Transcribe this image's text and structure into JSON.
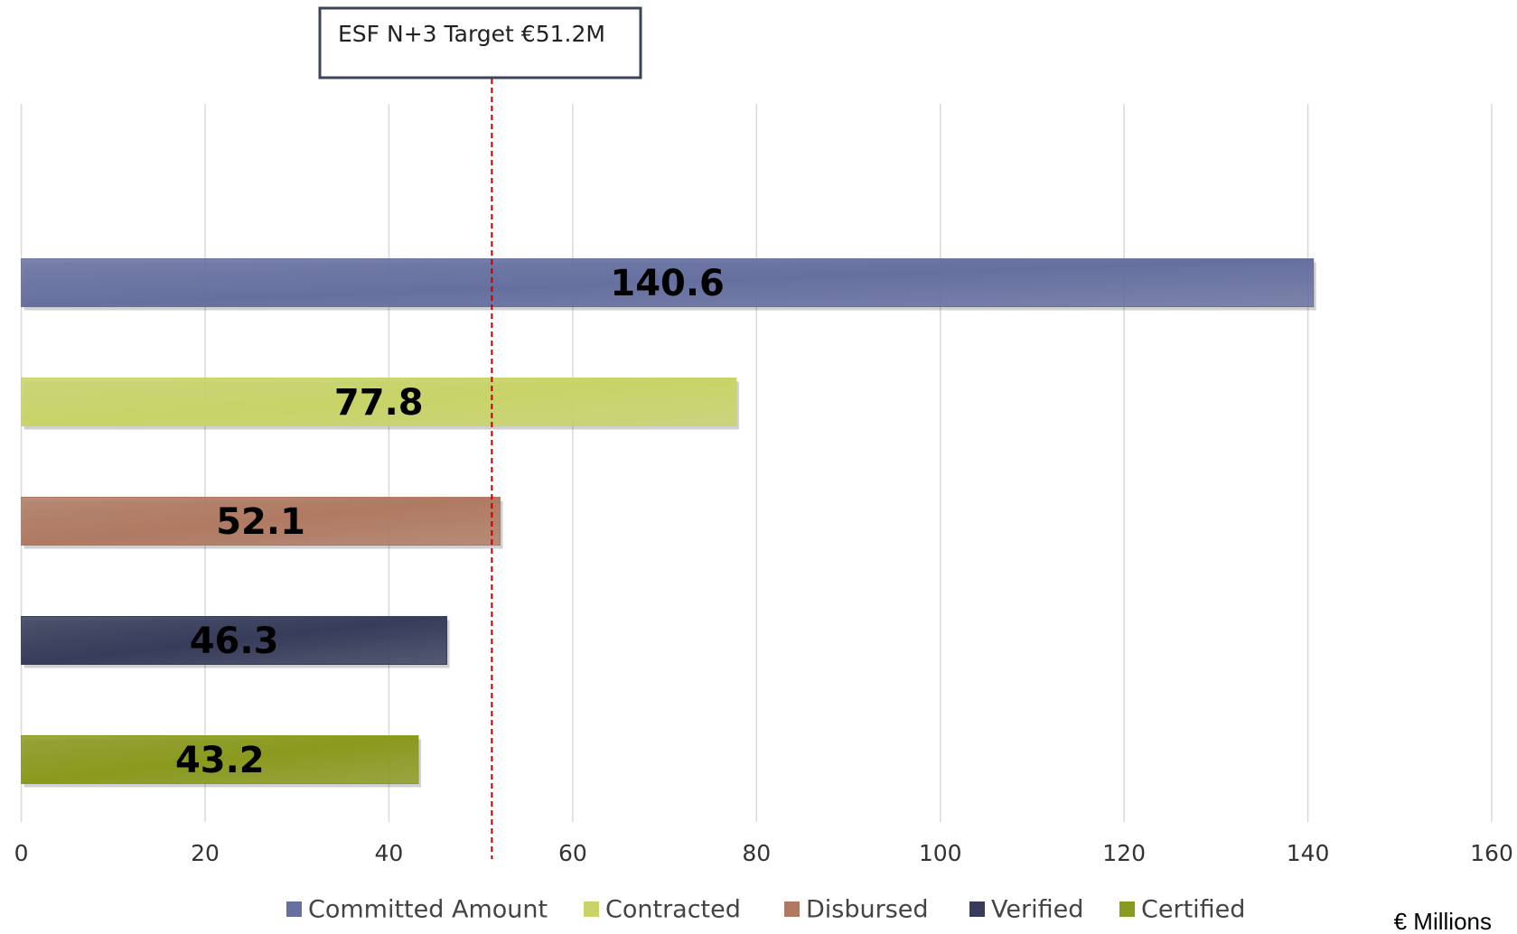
{
  "chart_data": {
    "type": "bar",
    "orientation": "horizontal",
    "series": [
      {
        "name": "Committed Amount",
        "color": "#6670a0",
        "values": [
          140.6
        ]
      },
      {
        "name": "Contracted",
        "color": "#c8d468",
        "values": [
          77.8
        ]
      },
      {
        "name": "Disbursed",
        "color": "#b07a62",
        "values": [
          52.1
        ]
      },
      {
        "name": "Verified",
        "color": "#363c5a",
        "values": [
          46.3
        ]
      },
      {
        "name": "Certified",
        "color": "#8a9a1e",
        "values": [
          43.2
        ]
      }
    ],
    "xlim": [
      0,
      160
    ],
    "xticks": [
      0,
      20,
      40,
      60,
      80,
      100,
      120,
      140,
      160
    ],
    "grid": true,
    "x_axis_label": "€ Millions",
    "annotation": {
      "label": "ESF N+3 Target €51.2M",
      "value": 51.2
    },
    "legend": "bottom"
  }
}
